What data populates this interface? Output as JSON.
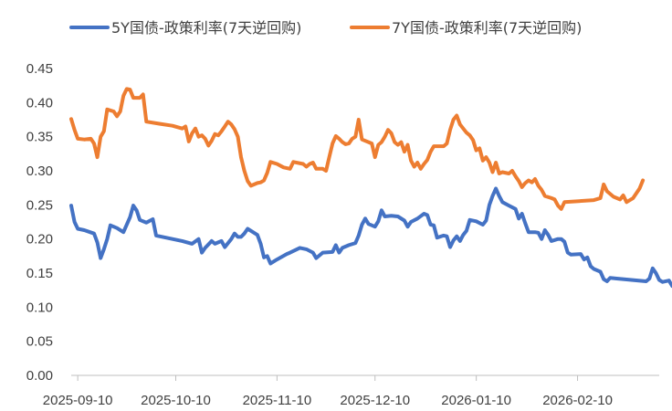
{
  "chart_data": {
    "type": "line",
    "title": "",
    "xlabel": "",
    "ylabel": "",
    "ylim": [
      0,
      0.45
    ],
    "yticks": [
      "0.00",
      "0.05",
      "0.10",
      "0.15",
      "0.20",
      "0.25",
      "0.30",
      "0.35",
      "0.40",
      "0.45"
    ],
    "xlim": [
      "2025-09-08",
      "2026-03-07"
    ],
    "xticks": [
      "2025-09-10",
      "2025-10-10",
      "2025-11-10",
      "2025-12-10",
      "2026-01-10",
      "2026-02-10"
    ],
    "grid": false,
    "legend": "top",
    "series": [
      {
        "name": "5Y国债-政策利率(7天逆回购)",
        "color": "#4472C4",
        "points": [
          [
            "2025-09-08",
            0.249
          ],
          [
            "2025-09-09",
            0.225
          ],
          [
            "2025-09-10",
            0.215
          ],
          [
            "2025-09-12",
            0.213
          ],
          [
            "2025-09-15",
            0.208
          ],
          [
            "2025-09-16",
            0.195
          ],
          [
            "2025-09-17",
            0.172
          ],
          [
            "2025-09-18",
            0.185
          ],
          [
            "2025-09-19",
            0.2
          ],
          [
            "2025-09-20",
            0.22
          ],
          [
            "2025-09-22",
            0.216
          ],
          [
            "2025-09-24",
            0.21
          ],
          [
            "2025-09-26",
            0.232
          ],
          [
            "2025-09-27",
            0.249
          ],
          [
            "2025-09-28",
            0.242
          ],
          [
            "2025-09-29",
            0.228
          ],
          [
            "2025-09-30",
            0.226
          ],
          [
            "2025-10-01",
            0.224
          ],
          [
            "2025-10-03",
            0.229
          ],
          [
            "2025-10-04",
            0.205
          ],
          [
            "2025-10-08",
            0.201
          ],
          [
            "2025-10-12",
            0.197
          ],
          [
            "2025-10-15",
            0.193
          ],
          [
            "2025-10-17",
            0.2
          ],
          [
            "2025-10-18",
            0.18
          ],
          [
            "2025-10-19",
            0.187
          ],
          [
            "2025-10-20",
            0.192
          ],
          [
            "2025-10-21",
            0.197
          ],
          [
            "2025-10-22",
            0.193
          ],
          [
            "2025-10-24",
            0.197
          ],
          [
            "2025-10-25",
            0.188
          ],
          [
            "2025-10-27",
            0.2
          ],
          [
            "2025-10-28",
            0.208
          ],
          [
            "2025-10-29",
            0.203
          ],
          [
            "2025-10-30",
            0.203
          ],
          [
            "2025-10-31",
            0.208
          ],
          [
            "2025-11-01",
            0.215
          ],
          [
            "2025-11-04",
            0.206
          ],
          [
            "2025-11-05",
            0.193
          ],
          [
            "2025-11-06",
            0.173
          ],
          [
            "2025-11-07",
            0.175
          ],
          [
            "2025-11-08",
            0.164
          ],
          [
            "2025-11-10",
            0.17
          ],
          [
            "2025-11-13",
            0.178
          ],
          [
            "2025-11-14",
            0.18
          ],
          [
            "2025-11-17",
            0.187
          ],
          [
            "2025-11-19",
            0.185
          ],
          [
            "2025-11-21",
            0.18
          ],
          [
            "2025-11-22",
            0.172
          ],
          [
            "2025-11-24",
            0.18
          ],
          [
            "2025-11-27",
            0.181
          ],
          [
            "2025-11-28",
            0.191
          ],
          [
            "2025-11-29",
            0.18
          ],
          [
            "2025-11-30",
            0.187
          ],
          [
            "2025-12-02",
            0.191
          ],
          [
            "2025-12-04",
            0.194
          ],
          [
            "2025-12-05",
            0.205
          ],
          [
            "2025-12-06",
            0.221
          ],
          [
            "2025-12-07",
            0.23
          ],
          [
            "2025-12-08",
            0.222
          ],
          [
            "2025-12-10",
            0.218
          ],
          [
            "2025-12-11",
            0.226
          ],
          [
            "2025-12-12",
            0.242
          ],
          [
            "2025-12-13",
            0.233
          ],
          [
            "2025-12-15",
            0.234
          ],
          [
            "2025-12-17",
            0.233
          ],
          [
            "2025-12-19",
            0.227
          ],
          [
            "2025-12-20",
            0.218
          ],
          [
            "2025-12-21",
            0.225
          ],
          [
            "2025-12-23",
            0.23
          ],
          [
            "2025-12-25",
            0.237
          ],
          [
            "2025-12-26",
            0.235
          ],
          [
            "2025-12-27",
            0.221
          ],
          [
            "2025-12-28",
            0.22
          ],
          [
            "2025-12-29",
            0.202
          ],
          [
            "2025-12-31",
            0.205
          ],
          [
            "2026-01-01",
            0.204
          ],
          [
            "2026-01-02",
            0.188
          ],
          [
            "2026-01-03",
            0.198
          ],
          [
            "2026-01-04",
            0.204
          ],
          [
            "2026-01-05",
            0.197
          ],
          [
            "2026-01-06",
            0.206
          ],
          [
            "2026-01-07",
            0.212
          ],
          [
            "2026-01-08",
            0.228
          ],
          [
            "2026-01-10",
            0.226
          ],
          [
            "2026-01-12",
            0.221
          ],
          [
            "2026-01-13",
            0.227
          ],
          [
            "2026-01-14",
            0.25
          ],
          [
            "2026-01-15",
            0.263
          ],
          [
            "2026-01-16",
            0.274
          ],
          [
            "2026-01-17",
            0.263
          ],
          [
            "2026-01-18",
            0.254
          ],
          [
            "2026-01-20",
            0.249
          ],
          [
            "2026-01-22",
            0.244
          ],
          [
            "2026-01-23",
            0.23
          ],
          [
            "2026-01-24",
            0.237
          ],
          [
            "2026-01-25",
            0.223
          ],
          [
            "2026-01-26",
            0.21
          ],
          [
            "2026-01-28",
            0.21
          ],
          [
            "2026-01-29",
            0.209
          ],
          [
            "2026-01-30",
            0.2
          ],
          [
            "2026-01-31",
            0.213
          ],
          [
            "2026-02-01",
            0.206
          ],
          [
            "2026-02-02",
            0.197
          ],
          [
            "2026-02-04",
            0.2
          ],
          [
            "2026-02-05",
            0.2
          ],
          [
            "2026-02-06",
            0.196
          ],
          [
            "2026-02-07",
            0.18
          ],
          [
            "2026-02-08",
            0.177
          ],
          [
            "2026-02-11",
            0.178
          ],
          [
            "2026-02-12",
            0.17
          ],
          [
            "2026-02-13",
            0.173
          ],
          [
            "2026-02-14",
            0.16
          ],
          [
            "2026-02-15",
            0.156
          ],
          [
            "2026-02-17",
            0.152
          ],
          [
            "2026-02-18",
            0.141
          ],
          [
            "2026-02-19",
            0.138
          ],
          [
            "2026-02-20",
            0.143
          ],
          [
            "2026-02-22",
            0.142
          ],
          [
            "2026-03-03",
            0.138
          ],
          [
            "2026-03-04",
            0.142
          ],
          [
            "2026-03-05",
            0.157
          ],
          [
            "2026-03-06",
            0.15
          ],
          [
            "2026-03-07",
            0.14
          ],
          [
            "2026-03-08",
            0.137
          ],
          [
            "2026-03-10",
            0.139
          ],
          [
            "2026-03-11",
            0.131
          ],
          [
            "2026-03-13",
            0.135
          ],
          [
            "2026-03-14",
            0.14
          ],
          [
            "2026-03-17",
            0.155
          ]
        ]
      },
      {
        "name": "7Y国债-政策利率(7天逆回购)",
        "color": "#ED7D31",
        "points": [
          [
            "2025-09-08",
            0.376
          ],
          [
            "2025-09-09",
            0.36
          ],
          [
            "2025-09-10",
            0.347
          ],
          [
            "2025-09-12",
            0.346
          ],
          [
            "2025-09-14",
            0.347
          ],
          [
            "2025-09-15",
            0.34
          ],
          [
            "2025-09-16",
            0.32
          ],
          [
            "2025-09-17",
            0.35
          ],
          [
            "2025-09-18",
            0.358
          ],
          [
            "2025-09-19",
            0.39
          ],
          [
            "2025-09-21",
            0.387
          ],
          [
            "2025-09-22",
            0.38
          ],
          [
            "2025-09-23",
            0.387
          ],
          [
            "2025-09-24",
            0.41
          ],
          [
            "2025-09-25",
            0.42
          ],
          [
            "2025-09-26",
            0.419
          ],
          [
            "2025-09-27",
            0.407
          ],
          [
            "2025-09-29",
            0.407
          ],
          [
            "2025-09-30",
            0.412
          ],
          [
            "2025-10-01",
            0.372
          ],
          [
            "2025-10-05",
            0.369
          ],
          [
            "2025-10-09",
            0.366
          ],
          [
            "2025-10-12",
            0.362
          ],
          [
            "2025-10-13",
            0.365
          ],
          [
            "2025-10-14",
            0.343
          ],
          [
            "2025-10-15",
            0.355
          ],
          [
            "2025-10-16",
            0.362
          ],
          [
            "2025-10-17",
            0.35
          ],
          [
            "2025-10-18",
            0.352
          ],
          [
            "2025-10-19",
            0.347
          ],
          [
            "2025-10-20",
            0.337
          ],
          [
            "2025-10-21",
            0.344
          ],
          [
            "2025-10-22",
            0.354
          ],
          [
            "2025-10-23",
            0.352
          ],
          [
            "2025-10-24",
            0.358
          ],
          [
            "2025-10-25",
            0.365
          ],
          [
            "2025-10-26",
            0.372
          ],
          [
            "2025-10-27",
            0.368
          ],
          [
            "2025-10-28",
            0.361
          ],
          [
            "2025-10-29",
            0.35
          ],
          [
            "2025-10-30",
            0.32
          ],
          [
            "2025-10-31",
            0.3
          ],
          [
            "2025-11-01",
            0.285
          ],
          [
            "2025-11-02",
            0.278
          ],
          [
            "2025-11-04",
            0.282
          ],
          [
            "2025-11-05",
            0.283
          ],
          [
            "2025-11-06",
            0.286
          ],
          [
            "2025-11-07",
            0.297
          ],
          [
            "2025-11-08",
            0.313
          ],
          [
            "2025-11-10",
            0.31
          ],
          [
            "2025-11-12",
            0.305
          ],
          [
            "2025-11-14",
            0.303
          ],
          [
            "2025-11-15",
            0.313
          ],
          [
            "2025-11-18",
            0.31
          ],
          [
            "2025-11-19",
            0.306
          ],
          [
            "2025-11-20",
            0.31
          ],
          [
            "2025-11-21",
            0.312
          ],
          [
            "2025-11-22",
            0.303
          ],
          [
            "2025-11-24",
            0.303
          ],
          [
            "2025-11-25",
            0.3
          ],
          [
            "2025-11-26",
            0.32
          ],
          [
            "2025-11-27",
            0.34
          ],
          [
            "2025-11-28",
            0.351
          ],
          [
            "2025-11-29",
            0.347
          ],
          [
            "2025-11-30",
            0.342
          ],
          [
            "2025-12-01",
            0.339
          ],
          [
            "2025-12-02",
            0.34
          ],
          [
            "2025-12-03",
            0.347
          ],
          [
            "2025-12-04",
            0.35
          ],
          [
            "2025-12-05",
            0.375
          ],
          [
            "2025-12-06",
            0.346
          ],
          [
            "2025-12-08",
            0.342
          ],
          [
            "2025-12-09",
            0.34
          ],
          [
            "2025-12-10",
            0.32
          ],
          [
            "2025-12-11",
            0.338
          ],
          [
            "2025-12-12",
            0.342
          ],
          [
            "2025-12-13",
            0.35
          ],
          [
            "2025-12-14",
            0.36
          ],
          [
            "2025-12-15",
            0.355
          ],
          [
            "2025-12-16",
            0.342
          ],
          [
            "2025-12-17",
            0.338
          ],
          [
            "2025-12-18",
            0.342
          ],
          [
            "2025-12-19",
            0.328
          ],
          [
            "2025-12-20",
            0.338
          ],
          [
            "2025-12-21",
            0.315
          ],
          [
            "2025-12-22",
            0.306
          ],
          [
            "2025-12-23",
            0.312
          ],
          [
            "2025-12-24",
            0.303
          ],
          [
            "2025-12-25",
            0.31
          ],
          [
            "2025-12-26",
            0.316
          ],
          [
            "2025-12-27",
            0.328
          ],
          [
            "2025-12-28",
            0.336
          ],
          [
            "2025-12-31",
            0.336
          ],
          [
            "2026-01-01",
            0.34
          ],
          [
            "2026-01-02",
            0.36
          ],
          [
            "2026-01-03",
            0.375
          ],
          [
            "2026-01-04",
            0.381
          ],
          [
            "2026-01-05",
            0.368
          ],
          [
            "2026-01-06",
            0.362
          ],
          [
            "2026-01-07",
            0.356
          ],
          [
            "2026-01-08",
            0.352
          ],
          [
            "2026-01-09",
            0.345
          ],
          [
            "2026-01-10",
            0.33
          ],
          [
            "2026-01-11",
            0.333
          ],
          [
            "2026-01-12",
            0.315
          ],
          [
            "2026-01-13",
            0.32
          ],
          [
            "2026-01-14",
            0.312
          ],
          [
            "2026-01-15",
            0.298
          ],
          [
            "2026-01-16",
            0.312
          ],
          [
            "2026-01-17",
            0.296
          ],
          [
            "2026-01-18",
            0.298
          ],
          [
            "2026-01-20",
            0.296
          ],
          [
            "2026-01-21",
            0.3
          ],
          [
            "2026-01-22",
            0.292
          ],
          [
            "2026-01-23",
            0.285
          ],
          [
            "2026-01-24",
            0.276
          ],
          [
            "2026-01-25",
            0.282
          ],
          [
            "2026-01-26",
            0.286
          ],
          [
            "2026-01-27",
            0.283
          ],
          [
            "2026-01-28",
            0.288
          ],
          [
            "2026-01-29",
            0.278
          ],
          [
            "2026-01-30",
            0.272
          ],
          [
            "2026-01-31",
            0.263
          ],
          [
            "2026-02-02",
            0.26
          ],
          [
            "2026-02-03",
            0.258
          ],
          [
            "2026-02-04",
            0.249
          ],
          [
            "2026-02-05",
            0.244
          ],
          [
            "2026-02-06",
            0.254
          ],
          [
            "2026-02-15",
            0.257
          ],
          [
            "2026-02-17",
            0.26
          ],
          [
            "2026-02-18",
            0.28
          ],
          [
            "2026-02-19",
            0.27
          ],
          [
            "2026-02-21",
            0.262
          ],
          [
            "2026-02-22",
            0.26
          ],
          [
            "2026-02-23",
            0.258
          ],
          [
            "2026-02-24",
            0.264
          ],
          [
            "2026-02-25",
            0.254
          ],
          [
            "2026-02-27",
            0.26
          ],
          [
            "2026-03-01",
            0.274
          ],
          [
            "2026-03-02",
            0.286
          ]
        ]
      }
    ]
  }
}
